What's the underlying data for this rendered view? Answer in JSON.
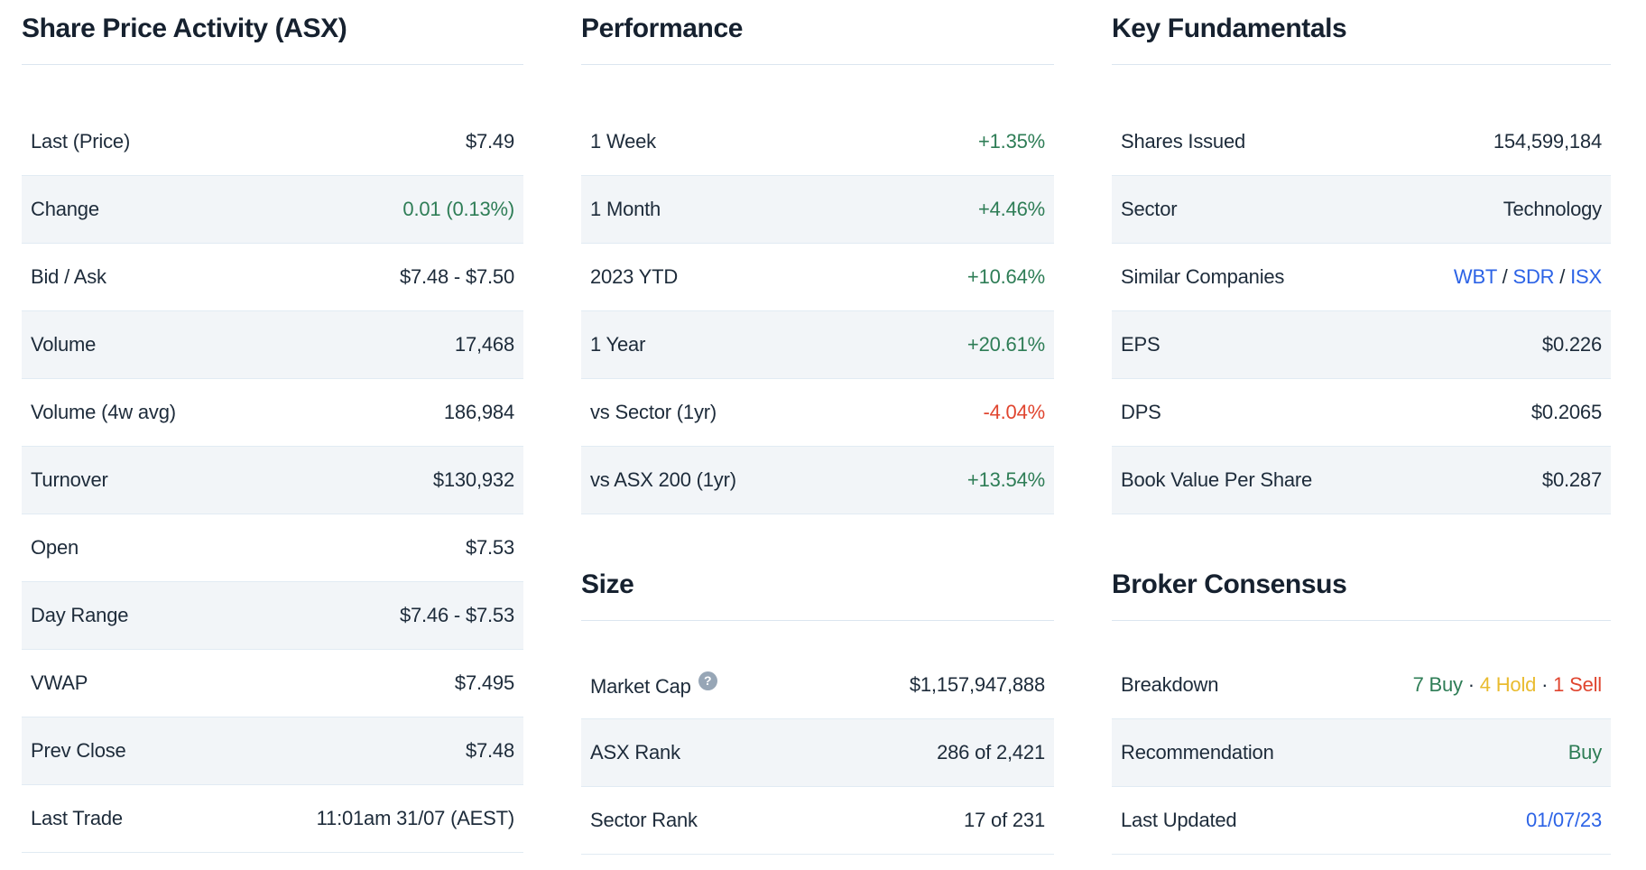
{
  "palette": {
    "text": "#1d2b3a",
    "heading": "#16212f",
    "positive_green": "#2e7d56",
    "negative_red": "#e0452f",
    "hold_gold": "#e9bb2e",
    "link_blue": "#2c63e6",
    "alt_row_bg": "#f2f5f8",
    "divider": "#dce6ef",
    "help_icon_bg": "#97a6b6"
  },
  "columns": [
    {
      "id": "share-price",
      "sections": [
        {
          "title": "Share Price Activity (ASX)",
          "rows": [
            {
              "label": "Last (Price)",
              "parts": [
                {
                  "text": "$7.49"
                }
              ]
            },
            {
              "label": "Change",
              "parts": [
                {
                  "text": "0.01 (0.13%)",
                  "color": "green"
                }
              ]
            },
            {
              "label": "Bid / Ask",
              "parts": [
                {
                  "text": "$7.48 - $7.50"
                }
              ]
            },
            {
              "label": "Volume",
              "parts": [
                {
                  "text": "17,468"
                }
              ]
            },
            {
              "label": "Volume (4w avg)",
              "parts": [
                {
                  "text": "186,984"
                }
              ]
            },
            {
              "label": "Turnover",
              "parts": [
                {
                  "text": "$130,932"
                }
              ]
            },
            {
              "label": "Open",
              "parts": [
                {
                  "text": "$7.53"
                }
              ]
            },
            {
              "label": "Day Range",
              "parts": [
                {
                  "text": "$7.46 - $7.53"
                }
              ]
            },
            {
              "label": "VWAP",
              "parts": [
                {
                  "text": "$7.495"
                }
              ]
            },
            {
              "label": "Prev Close",
              "parts": [
                {
                  "text": "$7.48"
                }
              ]
            },
            {
              "label": "Last Trade",
              "parts": [
                {
                  "text": "11:01am 31/07 (AEST)"
                }
              ]
            }
          ]
        }
      ]
    },
    {
      "id": "performance-size",
      "sections": [
        {
          "title": "Performance",
          "rows": [
            {
              "label": "1 Week",
              "parts": [
                {
                  "text": "+1.35%",
                  "color": "green"
                }
              ]
            },
            {
              "label": "1 Month",
              "parts": [
                {
                  "text": "+4.46%",
                  "color": "green"
                }
              ]
            },
            {
              "label": "2023 YTD",
              "parts": [
                {
                  "text": "+10.64%",
                  "color": "green"
                }
              ]
            },
            {
              "label": "1 Year",
              "parts": [
                {
                  "text": "+20.61%",
                  "color": "green"
                }
              ]
            },
            {
              "label": "vs Sector (1yr)",
              "parts": [
                {
                  "text": "-4.04%",
                  "color": "red"
                }
              ]
            },
            {
              "label": "vs ASX 200 (1yr)",
              "parts": [
                {
                  "text": "+13.54%",
                  "color": "green"
                }
              ]
            }
          ]
        },
        {
          "title": "Size",
          "rows": [
            {
              "label": "Market Cap",
              "help": "?",
              "parts": [
                {
                  "text": "$1,157,947,888"
                }
              ]
            },
            {
              "label": "ASX Rank",
              "parts": [
                {
                  "text": "286 of 2,421"
                }
              ]
            },
            {
              "label": "Sector Rank",
              "parts": [
                {
                  "text": "17 of 231"
                }
              ]
            }
          ]
        }
      ]
    },
    {
      "id": "fundamentals-consensus",
      "sections": [
        {
          "title": "Key Fundamentals",
          "rows": [
            {
              "label": "Shares Issued",
              "parts": [
                {
                  "text": "154,599,184"
                }
              ]
            },
            {
              "label": "Sector",
              "parts": [
                {
                  "text": "Technology"
                }
              ]
            },
            {
              "label": "Similar Companies",
              "parts": [
                {
                  "text": "WBT",
                  "color": "blue",
                  "link": true
                },
                {
                  "text": " / "
                },
                {
                  "text": "SDR",
                  "color": "blue",
                  "link": true
                },
                {
                  "text": " / "
                },
                {
                  "text": "ISX",
                  "color": "blue",
                  "link": true
                }
              ]
            },
            {
              "label": "EPS",
              "parts": [
                {
                  "text": "$0.226"
                }
              ]
            },
            {
              "label": "DPS",
              "parts": [
                {
                  "text": "$0.2065"
                }
              ]
            },
            {
              "label": "Book Value Per Share",
              "parts": [
                {
                  "text": "$0.287"
                }
              ]
            }
          ]
        },
        {
          "title": "Broker Consensus",
          "rows": [
            {
              "label": "Breakdown",
              "parts": [
                {
                  "text": "7 Buy",
                  "color": "green"
                },
                {
                  "text": " · "
                },
                {
                  "text": "4 Hold",
                  "color": "gold"
                },
                {
                  "text": " · "
                },
                {
                  "text": "1 Sell",
                  "color": "red"
                }
              ]
            },
            {
              "label": "Recommendation",
              "parts": [
                {
                  "text": "Buy",
                  "color": "green"
                }
              ]
            },
            {
              "label": "Last Updated",
              "parts": [
                {
                  "text": "01/07/23",
                  "color": "blue",
                  "link": true
                }
              ]
            }
          ]
        }
      ]
    }
  ]
}
